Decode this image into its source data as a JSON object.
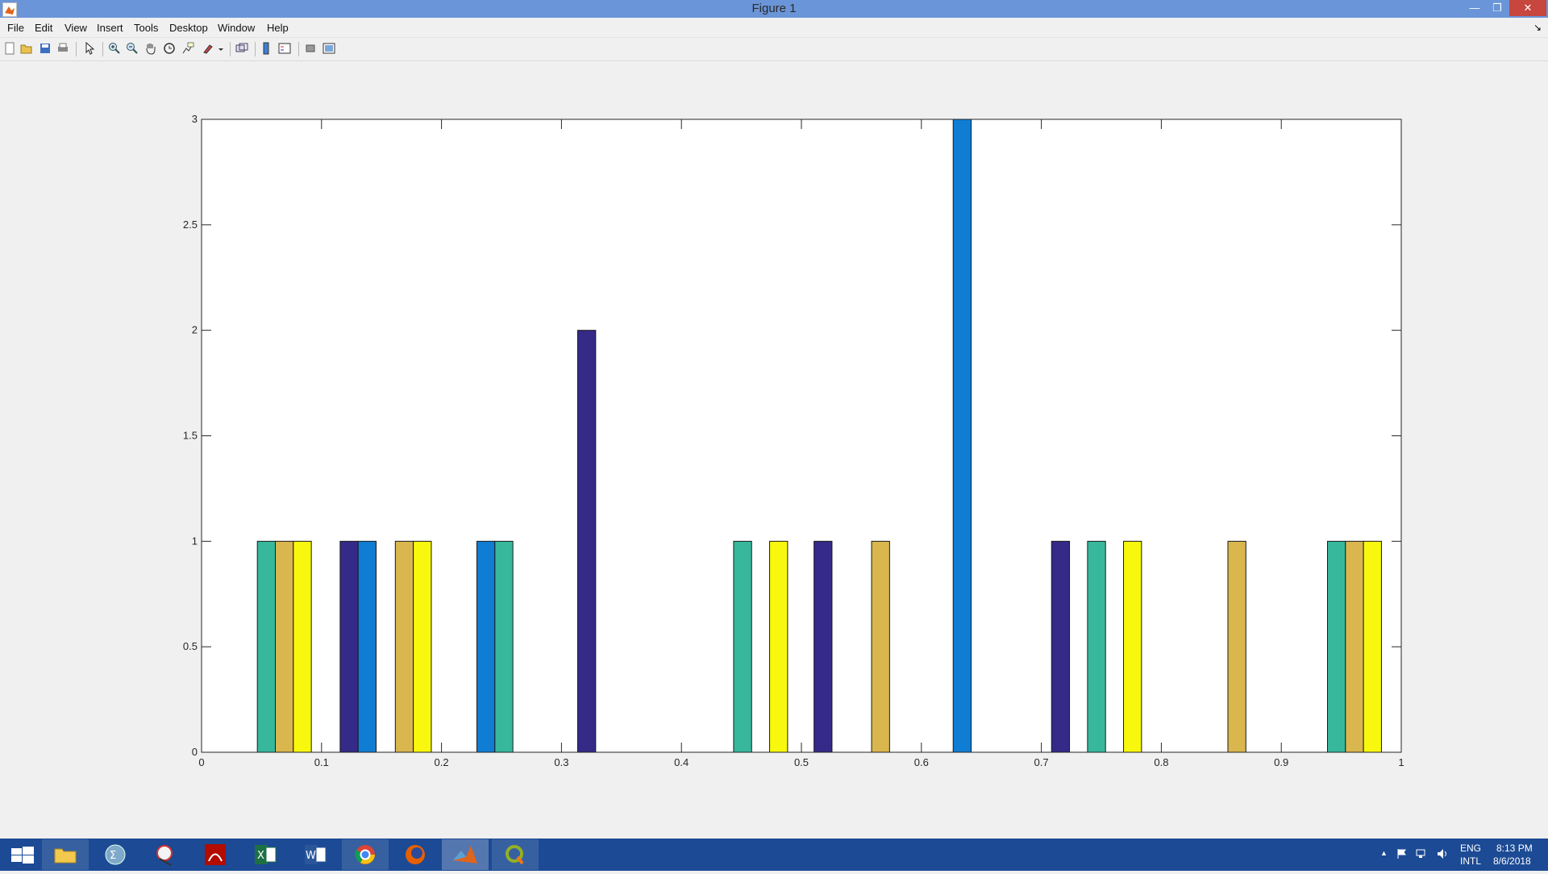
{
  "window": {
    "title": "Figure 1"
  },
  "window_controls": {
    "minimize": "—",
    "maximize": "❐",
    "close": "✕"
  },
  "menu": {
    "items": [
      "File",
      "Edit",
      "View",
      "Insert",
      "Tools",
      "Desktop",
      "Window",
      "Help"
    ],
    "dock_arrow": "↘"
  },
  "toolbar": {
    "icons": [
      "new-figure-icon",
      "open-file-icon",
      "save-icon",
      "print-icon",
      "edit-plot-pointer-icon",
      "zoom-in-icon",
      "zoom-out-icon",
      "pan-hand-icon",
      "rotate-3d-icon",
      "data-cursor-icon",
      "brush-icon",
      "link-plot-icon",
      "insert-colorbar-icon",
      "insert-legend-icon",
      "hide-plot-tools-icon",
      "show-plot-tools-icon"
    ]
  },
  "chart_data": {
    "type": "bar",
    "title": "",
    "xlabel": "",
    "ylabel": "",
    "xlim": [
      0,
      1
    ],
    "ylim": [
      0,
      3
    ],
    "xticks": [
      "0",
      "0.1",
      "0.2",
      "0.3",
      "0.4",
      "0.5",
      "0.6",
      "0.7",
      "0.8",
      "0.9",
      "1"
    ],
    "yticks": [
      "0",
      "0.5",
      "1",
      "1.5",
      "2",
      "2.5",
      "3"
    ],
    "grid": false,
    "legend": "none",
    "series": [
      {
        "color": "#352a87",
        "bars": [
          {
            "x": 0.123,
            "value": 1
          },
          {
            "x": 0.321,
            "value": 2
          },
          {
            "x": 0.518,
            "value": 1
          },
          {
            "x": 0.716,
            "value": 1
          }
        ]
      },
      {
        "color": "#0f7dd4",
        "bars": [
          {
            "x": 0.138,
            "value": 1
          },
          {
            "x": 0.237,
            "value": 1
          },
          {
            "x": 0.634,
            "value": 3
          }
        ]
      },
      {
        "color": "#37b89d",
        "bars": [
          {
            "x": 0.054,
            "value": 1
          },
          {
            "x": 0.252,
            "value": 1
          },
          {
            "x": 0.451,
            "value": 1
          },
          {
            "x": 0.746,
            "value": 1
          },
          {
            "x": 0.946,
            "value": 1
          }
        ]
      },
      {
        "color": "#d9b64e",
        "bars": [
          {
            "x": 0.069,
            "value": 1
          },
          {
            "x": 0.169,
            "value": 1
          },
          {
            "x": 0.566,
            "value": 1
          },
          {
            "x": 0.863,
            "value": 1
          },
          {
            "x": 0.961,
            "value": 1
          }
        ]
      },
      {
        "color": "#f8f80e",
        "bars": [
          {
            "x": 0.084,
            "value": 1
          },
          {
            "x": 0.184,
            "value": 1
          },
          {
            "x": 0.481,
            "value": 1
          },
          {
            "x": 0.776,
            "value": 1
          },
          {
            "x": 0.976,
            "value": 1
          }
        ]
      }
    ]
  },
  "taskbar": {
    "apps": [
      "start-icon",
      "file-explorer-icon",
      "calculator-app-icon",
      "snipping-tool-icon",
      "acrobat-reader-icon",
      "excel-icon",
      "word-icon",
      "chrome-icon",
      "firefox-icon",
      "matlab-icon",
      "qgis-icon"
    ],
    "tray": {
      "show_hidden": "▲",
      "language_top": "ENG",
      "language_bottom": "INTL",
      "time": "8:13 PM",
      "date": "8/6/2018"
    }
  }
}
